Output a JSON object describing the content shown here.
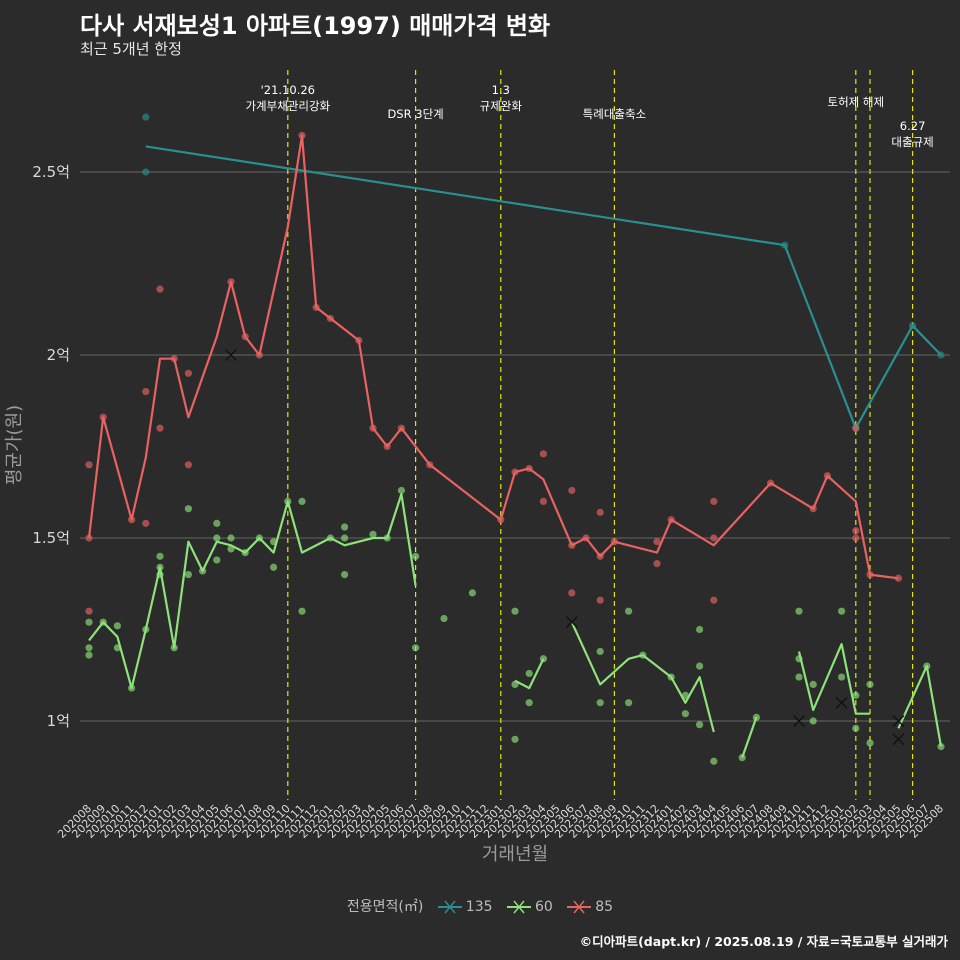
{
  "title": "다사 서재보성1 아파트(1997) 매매가격 변화",
  "subtitle": "최근 5개년 한정",
  "caption": "©디아파트(dapt.kr) / 2025.08.19 / 자료=국토교통부 실거래가",
  "colors": {
    "background": "#2b2b2b",
    "grid": "#5a5a5a",
    "vline": "#e6e600",
    "s135": "#2a8f8f",
    "s60": "#8ee27a",
    "s85": "#e86262"
  },
  "chart_data": {
    "type": "line",
    "xlabel": "거래년월",
    "ylabel": "평균가(원)",
    "ylim": [
      0.8,
      2.75
    ],
    "yticks": [
      {
        "v": 1,
        "label": "1억"
      },
      {
        "v": 1.5,
        "label": "1.5억"
      },
      {
        "v": 2,
        "label": "2억"
      },
      {
        "v": 2.5,
        "label": "2.5억"
      }
    ],
    "x": [
      "202008",
      "202009",
      "202010",
      "202011",
      "202012",
      "202101",
      "202102",
      "202103",
      "202104",
      "202105",
      "202106",
      "202107",
      "202108",
      "202109",
      "202110",
      "202111",
      "202112",
      "202201",
      "202202",
      "202203",
      "202204",
      "202205",
      "202206",
      "202207",
      "202208",
      "202209",
      "202210",
      "202211",
      "202212",
      "202301",
      "202302",
      "202303",
      "202304",
      "202305",
      "202306",
      "202307",
      "202308",
      "202309",
      "202310",
      "202311",
      "202312",
      "202401",
      "202402",
      "202403",
      "202404",
      "202405",
      "202406",
      "202407",
      "202408",
      "202409",
      "202410",
      "202411",
      "202412",
      "202501",
      "202502",
      "202503",
      "202504",
      "202505",
      "202506",
      "202507",
      "202508"
    ],
    "legend_title": "전용면적(㎡)",
    "legend_position": "bottom",
    "events": [
      {
        "x": "202110",
        "lines": [
          "'21.10.26",
          "가계부채관리강화"
        ],
        "row": 0
      },
      {
        "x": "202207",
        "lines": [
          "DSR 3단계"
        ],
        "row": 1
      },
      {
        "x": "202301",
        "lines": [
          "1.3",
          "규제완화"
        ],
        "row": 0
      },
      {
        "x": "202309",
        "lines": [
          "특례대출축소"
        ],
        "row": 1
      },
      {
        "x": "202502",
        "lines": [
          "토허제 해제"
        ],
        "row": 0.5
      },
      {
        "x": "202503",
        "lines": [],
        "row": 0
      },
      {
        "x": "202506",
        "lines": [
          "6.27",
          "대출규제"
        ],
        "row": 1.5
      }
    ],
    "series": [
      {
        "name": "135",
        "color": "#2a8f8f",
        "line": [
          [
            "202012",
            2.57
          ],
          [
            "202409",
            2.3
          ],
          [
            "202502",
            1.8
          ],
          [
            "202506",
            2.08
          ],
          [
            "202508",
            2.0
          ]
        ],
        "points": [
          [
            "202012",
            2.65
          ],
          [
            "202012",
            2.5
          ],
          [
            "202409",
            2.3
          ],
          [
            "202502",
            1.8
          ],
          [
            "202506",
            2.08
          ],
          [
            "202508",
            2.0
          ]
        ],
        "crosses": []
      },
      {
        "name": "60",
        "color": "#8ee27a",
        "line": [
          [
            [
              "202008",
              1.22
            ],
            [
              "202009",
              1.27
            ],
            [
              "202010",
              1.23
            ],
            [
              "202011",
              1.09
            ],
            [
              "202012",
              1.25
            ],
            [
              "202101",
              1.42
            ],
            [
              "202102",
              1.2
            ],
            [
              "202103",
              1.49
            ],
            [
              "202104",
              1.41
            ],
            [
              "202105",
              1.49
            ],
            [
              "202106",
              1.48
            ],
            [
              "202107",
              1.46
            ],
            [
              "202108",
              1.5
            ],
            [
              "202109",
              1.46
            ],
            [
              "202110",
              1.6
            ],
            [
              "202111",
              1.46
            ],
            [
              "202201",
              1.5
            ],
            [
              "202202",
              1.48
            ],
            [
              "202204",
              1.5
            ],
            [
              "202205",
              1.5
            ],
            [
              "202206",
              1.62
            ],
            [
              "202207",
              1.37
            ]
          ],
          [
            [
              "202302",
              1.11
            ],
            [
              "202303",
              1.09
            ],
            [
              "202304",
              1.17
            ]
          ],
          [
            [
              "202306",
              1.27
            ],
            [
              "202308",
              1.1
            ],
            [
              "202310",
              1.17
            ],
            [
              "202311",
              1.18
            ],
            [
              "202401",
              1.12
            ],
            [
              "202402",
              1.05
            ],
            [
              "202403",
              1.12
            ],
            [
              "202404",
              0.97
            ]
          ],
          [
            [
              "202406",
              0.9
            ],
            [
              "202407",
              1.01
            ]
          ],
          [
            [
              "202410",
              1.19
            ],
            [
              "202411",
              1.03
            ],
            [
              "202501",
              1.21
            ],
            [
              "202502",
              1.02
            ],
            [
              "202503",
              1.02
            ]
          ],
          [
            [
              "202505",
              0.98
            ],
            [
              "202507",
              1.15
            ],
            [
              "202508",
              0.93
            ]
          ]
        ],
        "points": [
          [
            "202008",
            1.27
          ],
          [
            "202008",
            1.2
          ],
          [
            "202008",
            1.18
          ],
          [
            "202009",
            1.27
          ],
          [
            "202010",
            1.26
          ],
          [
            "202010",
            1.2
          ],
          [
            "202011",
            1.09
          ],
          [
            "202012",
            1.25
          ],
          [
            "202101",
            1.45
          ],
          [
            "202101",
            1.42
          ],
          [
            "202101",
            1.4
          ],
          [
            "202102",
            1.2
          ],
          [
            "202103",
            1.58
          ],
          [
            "202103",
            1.4
          ],
          [
            "202104",
            1.41
          ],
          [
            "202105",
            1.54
          ],
          [
            "202105",
            1.5
          ],
          [
            "202105",
            1.44
          ],
          [
            "202106",
            1.5
          ],
          [
            "202106",
            1.47
          ],
          [
            "202107",
            1.46
          ],
          [
            "202108",
            1.5
          ],
          [
            "202109",
            1.49
          ],
          [
            "202109",
            1.42
          ],
          [
            "202110",
            1.6
          ],
          [
            "202111",
            1.6
          ],
          [
            "202111",
            1.3
          ],
          [
            "202201",
            1.5
          ],
          [
            "202202",
            1.53
          ],
          [
            "202202",
            1.5
          ],
          [
            "202202",
            1.4
          ],
          [
            "202204",
            1.51
          ],
          [
            "202205",
            1.5
          ],
          [
            "202206",
            1.63
          ],
          [
            "202207",
            1.45
          ],
          [
            "202207",
            1.2
          ],
          [
            "202209",
            1.28
          ],
          [
            "202211",
            1.35
          ],
          [
            "202302",
            1.3
          ],
          [
            "202302",
            1.1
          ],
          [
            "202302",
            0.95
          ],
          [
            "202303",
            1.13
          ],
          [
            "202303",
            1.05
          ],
          [
            "202304",
            1.17
          ],
          [
            "202308",
            1.19
          ],
          [
            "202308",
            1.05
          ],
          [
            "202310",
            1.3
          ],
          [
            "202310",
            1.05
          ],
          [
            "202311",
            1.18
          ],
          [
            "202401",
            1.12
          ],
          [
            "202402",
            1.07
          ],
          [
            "202402",
            1.02
          ],
          [
            "202403",
            1.25
          ],
          [
            "202403",
            1.15
          ],
          [
            "202403",
            0.99
          ],
          [
            "202404",
            0.89
          ],
          [
            "202406",
            0.9
          ],
          [
            "202407",
            1.01
          ],
          [
            "202410",
            1.3
          ],
          [
            "202410",
            1.17
          ],
          [
            "202410",
            1.12
          ],
          [
            "202411",
            1.1
          ],
          [
            "202411",
            1.0
          ],
          [
            "202501",
            1.3
          ],
          [
            "202501",
            1.12
          ],
          [
            "202502",
            1.07
          ],
          [
            "202502",
            0.98
          ],
          [
            "202503",
            1.1
          ],
          [
            "202503",
            0.94
          ],
          [
            "202507",
            1.15
          ],
          [
            "202508",
            0.93
          ]
        ],
        "crosses": [
          [
            "202306",
            1.27
          ],
          [
            "202410",
            1.0
          ],
          [
            "202501",
            1.05
          ],
          [
            "202505",
            1.0
          ],
          [
            "202505",
            0.95
          ]
        ]
      },
      {
        "name": "85",
        "color": "#e86262",
        "line": [
          [
            [
              "202008",
              1.5
            ],
            [
              "202009",
              1.83
            ],
            [
              "202011",
              1.55
            ],
            [
              "202012",
              1.72
            ],
            [
              "202101",
              1.99
            ],
            [
              "202102",
              1.99
            ],
            [
              "202103",
              1.83
            ],
            [
              "202105",
              2.05
            ],
            [
              "202106",
              2.2
            ],
            [
              "202107",
              2.05
            ],
            [
              "202108",
              2.0
            ],
            [
              "202110",
              2.35
            ],
            [
              "202111",
              2.6
            ],
            [
              "202112",
              2.13
            ],
            [
              "202201",
              2.1
            ],
            [
              "202203",
              2.04
            ],
            [
              "202204",
              1.8
            ],
            [
              "202205",
              1.75
            ],
            [
              "202206",
              1.8
            ],
            [
              "202208",
              1.7
            ],
            [
              "202301",
              1.55
            ],
            [
              "202302",
              1.68
            ],
            [
              "202303",
              1.69
            ],
            [
              "202304",
              1.66
            ],
            [
              "202306",
              1.48
            ],
            [
              "202307",
              1.5
            ],
            [
              "202308",
              1.45
            ],
            [
              "202309",
              1.49
            ],
            [
              "202312",
              1.46
            ],
            [
              "202401",
              1.55
            ],
            [
              "202404",
              1.48
            ],
            [
              "202408",
              1.65
            ],
            [
              "202411",
              1.58
            ],
            [
              "202412",
              1.67
            ],
            [
              "202502",
              1.6
            ],
            [
              "202503",
              1.4
            ],
            [
              "202505",
              1.39
            ]
          ]
        ],
        "points": [
          [
            "202008",
            1.7
          ],
          [
            "202008",
            1.5
          ],
          [
            "202008",
            1.3
          ],
          [
            "202009",
            1.83
          ],
          [
            "202011",
            1.55
          ],
          [
            "202012",
            1.9
          ],
          [
            "202012",
            1.54
          ],
          [
            "202101",
            2.18
          ],
          [
            "202101",
            1.8
          ],
          [
            "202102",
            1.99
          ],
          [
            "202103",
            1.95
          ],
          [
            "202103",
            1.7
          ],
          [
            "202106",
            2.2
          ],
          [
            "202107",
            2.05
          ],
          [
            "202108",
            2.0
          ],
          [
            "202111",
            2.6
          ],
          [
            "202112",
            2.13
          ],
          [
            "202201",
            2.1
          ],
          [
            "202203",
            2.04
          ],
          [
            "202204",
            1.8
          ],
          [
            "202205",
            1.75
          ],
          [
            "202206",
            1.8
          ],
          [
            "202208",
            1.7
          ],
          [
            "202301",
            1.55
          ],
          [
            "202302",
            1.68
          ],
          [
            "202303",
            1.69
          ],
          [
            "202304",
            1.73
          ],
          [
            "202304",
            1.6
          ],
          [
            "202306",
            1.63
          ],
          [
            "202306",
            1.48
          ],
          [
            "202306",
            1.35
          ],
          [
            "202307",
            1.5
          ],
          [
            "202308",
            1.57
          ],
          [
            "202308",
            1.45
          ],
          [
            "202308",
            1.33
          ],
          [
            "202309",
            1.49
          ],
          [
            "202312",
            1.49
          ],
          [
            "202312",
            1.43
          ],
          [
            "202401",
            1.55
          ],
          [
            "202404",
            1.6
          ],
          [
            "202404",
            1.5
          ],
          [
            "202404",
            1.33
          ],
          [
            "202408",
            1.65
          ],
          [
            "202411",
            1.58
          ],
          [
            "202412",
            1.67
          ],
          [
            "202502",
            1.8
          ],
          [
            "202502",
            1.52
          ],
          [
            "202502",
            1.5
          ],
          [
            "202503",
            1.4
          ],
          [
            "202505",
            1.39
          ]
        ],
        "crosses": [
          [
            "202106",
            2.0
          ]
        ]
      }
    ]
  }
}
